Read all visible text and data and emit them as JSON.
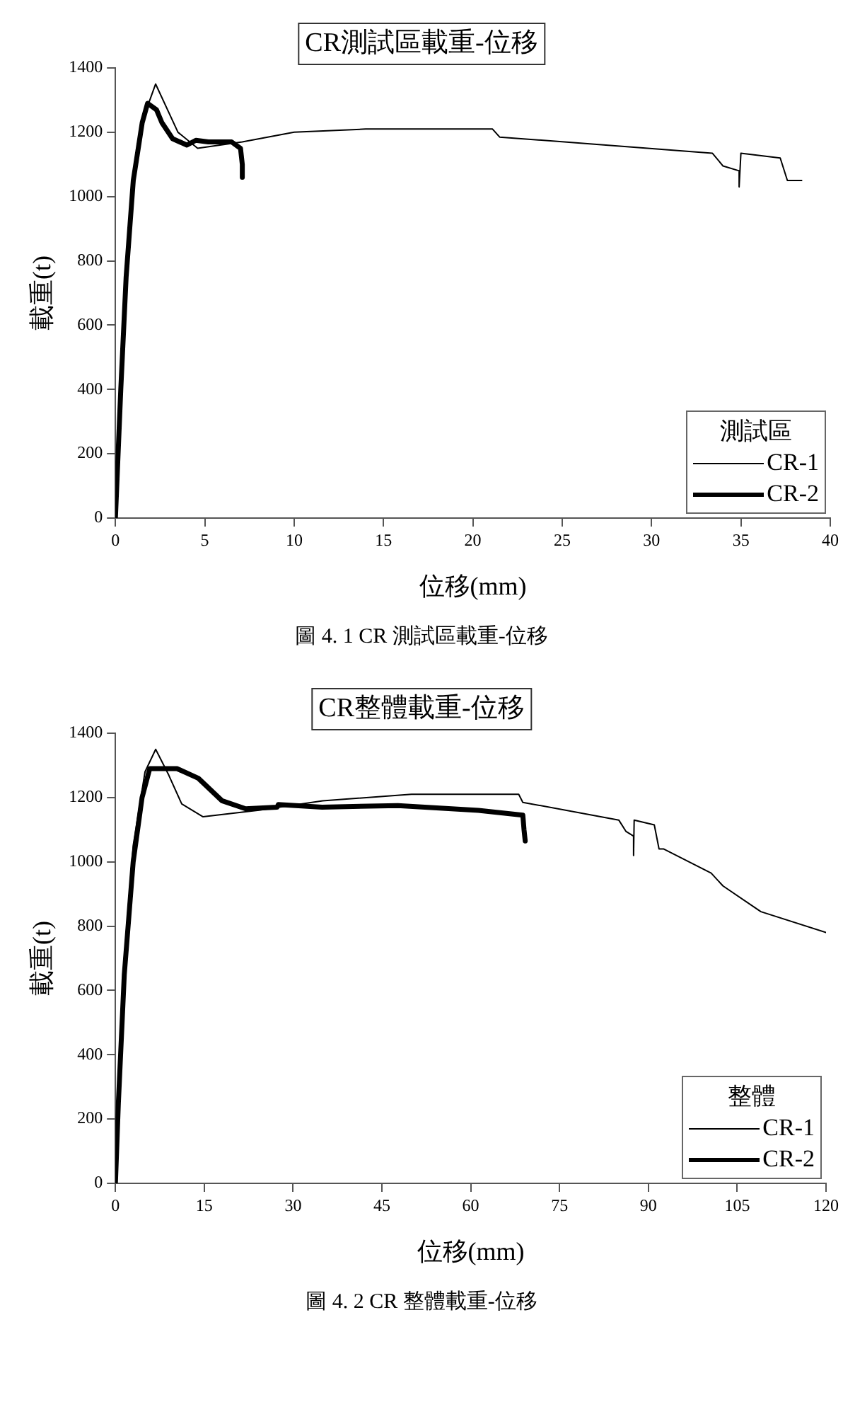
{
  "chart_data": [
    {
      "type": "line",
      "title": "CR測試區載重-位移",
      "xlabel": "位移(mm)",
      "ylabel": "載重(t)",
      "legend_title": "測試區",
      "legend": "bottom right",
      "grid": false,
      "marker": "none",
      "line_style": "solid",
      "xlim": [
        0,
        40
      ],
      "xticks": [
        0,
        5,
        10,
        15,
        20,
        25,
        30,
        35,
        40
      ],
      "ylim": [
        0,
        1400
      ],
      "yticks": [
        0,
        200,
        400,
        600,
        800,
        1000,
        1200,
        1400
      ],
      "annotations": [
        "圖 4. 1 CR 測試區載重-位移"
      ],
      "series": [
        {
          "name": "CR-1",
          "color": "#000000",
          "x": [
            0,
            0.3,
            0.7,
            1.1,
            1.6,
            2.25,
            3.5,
            4.6,
            7.1,
            10,
            14,
            21.1,
            21.5,
            33.4,
            34,
            34.9,
            34.9,
            35,
            37.2,
            37.6,
            38.4
          ],
          "values": [
            0,
            420,
            800,
            1080,
            1250,
            1350,
            1200,
            1150,
            1170,
            1200,
            1210,
            1210,
            1185,
            1135,
            1095,
            1080,
            1030,
            1135,
            1120,
            1050,
            1050
          ]
        },
        {
          "name": "CR-2",
          "color": "#000000",
          "x": [
            0,
            0.3,
            0.6,
            1,
            1.5,
            1.8,
            2.3,
            2.6,
            3.2,
            4,
            4.5,
            5.2,
            6.5,
            7,
            7.1,
            7.1
          ],
          "values": [
            0,
            400,
            750,
            1050,
            1230,
            1290,
            1270,
            1230,
            1180,
            1160,
            1175,
            1170,
            1170,
            1150,
            1100,
            1060
          ]
        }
      ]
    },
    {
      "type": "line",
      "title": "CR整體載重-位移",
      "xlabel": "位移(mm)",
      "ylabel": "載重(t)",
      "legend_title": "整體",
      "legend": "bottom right",
      "grid": false,
      "marker": "none",
      "line_style": "solid",
      "xlim": [
        0,
        120
      ],
      "xticks": [
        0,
        15,
        30,
        45,
        60,
        75,
        90,
        105,
        120
      ],
      "ylim": [
        0,
        1400
      ],
      "yticks": [
        0,
        200,
        400,
        600,
        800,
        1000,
        1200,
        1400
      ],
      "annotations": [
        "圖 4. 2 CR 整體載重-位移"
      ],
      "series": [
        {
          "name": "CR-1",
          "color": "#000000",
          "x": [
            0,
            0.5,
            1.5,
            3,
            5,
            6.8,
            9,
            11.2,
            14.8,
            24,
            35,
            50,
            68.1,
            68.8,
            85,
            86.2,
            87.5,
            87.5,
            87.6,
            91,
            91.8,
            92.6,
            100.6,
            102.6,
            109,
            120
          ],
          "values": [
            0,
            300,
            700,
            1050,
            1280,
            1350,
            1270,
            1180,
            1140,
            1160,
            1190,
            1210,
            1210,
            1185,
            1130,
            1095,
            1080,
            1020,
            1130,
            1115,
            1040,
            1040,
            965,
            925,
            845,
            780
          ]
        },
        {
          "name": "CR-2",
          "color": "#000000",
          "x": [
            0,
            0.5,
            1.5,
            3,
            4.5,
            5.8,
            10.4,
            14,
            18,
            22,
            27.3,
            27.5,
            34.9,
            47.7,
            61.3,
            68.8,
            69,
            69.2
          ],
          "values": [
            0,
            250,
            650,
            1000,
            1200,
            1290,
            1290,
            1260,
            1190,
            1165,
            1170,
            1178,
            1170,
            1175,
            1160,
            1145,
            1100,
            1065
          ]
        }
      ]
    }
  ]
}
